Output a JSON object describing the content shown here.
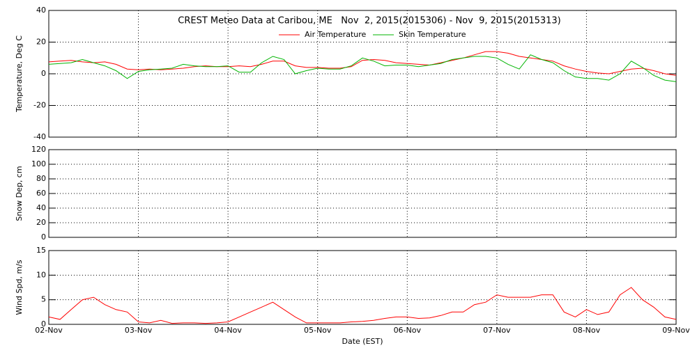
{
  "chart_data": [
    {
      "type": "line",
      "title": "CREST Meteo Data at Caribou, ME   Nov  2, 2015(2015306) - Nov  9, 2015(2015313)",
      "ylabel": "Temperature, Deg C",
      "x": [
        0,
        0.125,
        0.25,
        0.375,
        0.5,
        0.625,
        0.75,
        0.875,
        1,
        1.125,
        1.25,
        1.375,
        1.5,
        1.625,
        1.75,
        1.875,
        2,
        2.125,
        2.25,
        2.375,
        2.5,
        2.625,
        2.75,
        2.875,
        3,
        3.125,
        3.25,
        3.375,
        3.5,
        3.625,
        3.75,
        3.875,
        4,
        4.125,
        4.25,
        4.375,
        4.5,
        4.625,
        4.75,
        4.875,
        5,
        5.125,
        5.25,
        5.375,
        5.5,
        5.625,
        5.75,
        5.875,
        6,
        6.125,
        6.25,
        6.375,
        6.5,
        6.625,
        6.75,
        6.875,
        7
      ],
      "series": [
        {
          "name": "Air Temperature",
          "color": "#ff0000",
          "values": [
            7.5,
            8,
            8.5,
            7.5,
            7,
            7.5,
            6,
            3,
            2.5,
            3,
            2.5,
            3,
            3.5,
            4.5,
            5,
            4.5,
            4.5,
            5,
            4.5,
            6,
            8,
            8,
            5,
            4,
            4,
            3.5,
            3.5,
            4.5,
            8.5,
            9,
            8.5,
            7,
            6.5,
            6,
            5.5,
            7,
            8.5,
            10,
            12,
            14,
            14,
            13,
            11,
            10,
            9,
            8,
            5,
            3,
            1.5,
            0.5,
            0,
            1.5,
            3,
            3.5,
            2,
            0,
            -1
          ]
        },
        {
          "name": "Skin Temperature",
          "color": "#00b400",
          "values": [
            6,
            6.5,
            7,
            9,
            7,
            5,
            2,
            -3,
            1.5,
            2.5,
            3,
            3.5,
            6,
            5,
            4.5,
            4.5,
            5,
            1,
            1,
            7,
            11,
            9,
            0,
            2,
            3.5,
            3,
            3,
            5,
            10,
            8,
            5,
            5.5,
            5.5,
            4.5,
            5.5,
            6.5,
            9,
            10,
            11,
            11,
            10,
            6,
            3,
            12,
            9,
            7,
            2,
            -2,
            -3,
            -3,
            -4,
            0,
            8,
            4,
            -1,
            -4,
            -5
          ]
        }
      ],
      "xlim": [
        0,
        7
      ],
      "xticks": [
        0,
        1,
        2,
        3,
        4,
        5,
        6,
        7
      ],
      "ylim": [
        -40,
        40
      ],
      "yticks": [
        -40,
        -20,
        0,
        20,
        40
      ],
      "grid": true
    },
    {
      "type": "line",
      "ylabel": "Snow Dep, cm",
      "series": [],
      "xlim": [
        0,
        7
      ],
      "xticks": [
        0,
        1,
        2,
        3,
        4,
        5,
        6,
        7
      ],
      "ylim": [
        0,
        120
      ],
      "yticks": [
        0,
        20,
        40,
        60,
        80,
        100,
        120
      ],
      "grid": true
    },
    {
      "type": "line",
      "ylabel": "Wind Spd, m/s",
      "xlabel": "Date (EST)",
      "x": [
        0,
        0.125,
        0.25,
        0.375,
        0.5,
        0.625,
        0.75,
        0.875,
        1,
        1.125,
        1.25,
        1.375,
        1.5,
        1.625,
        1.75,
        1.875,
        2,
        2.125,
        2.25,
        2.375,
        2.5,
        2.625,
        2.75,
        2.875,
        3,
        3.125,
        3.25,
        3.375,
        3.5,
        3.625,
        3.75,
        3.875,
        4,
        4.125,
        4.25,
        4.375,
        4.5,
        4.625,
        4.75,
        4.875,
        5,
        5.125,
        5.25,
        5.375,
        5.5,
        5.625,
        5.75,
        5.875,
        6,
        6.125,
        6.25,
        6.375,
        6.5,
        6.625,
        6.75,
        6.875,
        7
      ],
      "series": [
        {
          "color": "#ff0000",
          "values": [
            1.5,
            1,
            3,
            5,
            5.5,
            4,
            3,
            2.5,
            0.5,
            0.3,
            0.8,
            0.2,
            0.3,
            0.3,
            0.2,
            0.3,
            0.5,
            1.5,
            2.5,
            3.5,
            4.5,
            3,
            1.5,
            0.3,
            0.3,
            0.3,
            0.3,
            0.5,
            0.6,
            0.8,
            1.2,
            1.5,
            1.5,
            1.2,
            1.3,
            1.8,
            2.5,
            2.5,
            4,
            4.5,
            6,
            5.5,
            5.5,
            5.5,
            6,
            6,
            2.5,
            1.5,
            3,
            2,
            2.5,
            6,
            7.5,
            5,
            3.5,
            1.5,
            1
          ]
        }
      ],
      "xlim": [
        0,
        7
      ],
      "xticks": [
        {
          "value": 0,
          "label": "02-Nov"
        },
        {
          "value": 1,
          "label": "03-Nov"
        },
        {
          "value": 2,
          "label": "04-Nov"
        },
        {
          "value": 3,
          "label": "05-Nov"
        },
        {
          "value": 4,
          "label": "06-Nov"
        },
        {
          "value": 5,
          "label": "07-Nov"
        },
        {
          "value": 6,
          "label": "08-Nov"
        },
        {
          "value": 7,
          "label": "09-Nov"
        }
      ],
      "ylim": [
        0,
        15
      ],
      "yticks": [
        0,
        5,
        10,
        15
      ],
      "grid": true
    }
  ]
}
